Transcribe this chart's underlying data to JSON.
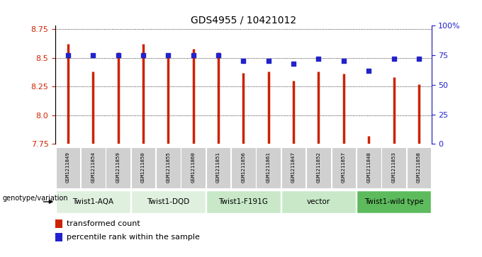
{
  "title": "GDS4955 / 10421012",
  "samples": [
    "GSM1211849",
    "GSM1211854",
    "GSM1211859",
    "GSM1211850",
    "GSM1211855",
    "GSM1211860",
    "GSM1211851",
    "GSM1211856",
    "GSM1211861",
    "GSM1211847",
    "GSM1211852",
    "GSM1211857",
    "GSM1211848",
    "GSM1211853",
    "GSM1211858"
  ],
  "bar_values": [
    8.62,
    8.38,
    8.55,
    8.62,
    8.54,
    8.58,
    8.55,
    8.37,
    8.38,
    8.3,
    8.38,
    8.36,
    7.82,
    8.33,
    8.27
  ],
  "percentile_values": [
    75,
    75,
    75,
    75,
    75,
    75,
    75,
    70,
    70,
    68,
    72,
    70,
    62,
    72,
    72
  ],
  "groups": [
    {
      "label": "Twist1-AQA",
      "start": 0,
      "end": 3
    },
    {
      "label": "Twist1-DQD",
      "start": 3,
      "end": 6
    },
    {
      "label": "Twist1-F191G",
      "start": 6,
      "end": 9
    },
    {
      "label": "vector",
      "start": 9,
      "end": 12
    },
    {
      "label": "Twist1-wild type",
      "start": 12,
      "end": 15
    }
  ],
  "group_colors": [
    "#dff0df",
    "#dff0df",
    "#c8e8c8",
    "#c8e8c8",
    "#5dbb5d"
  ],
  "ylim_left": [
    7.75,
    8.78
  ],
  "ylim_right": [
    0,
    100
  ],
  "yticks_left": [
    7.75,
    8.0,
    8.25,
    8.5,
    8.75
  ],
  "yticks_right": [
    0,
    25,
    50,
    75,
    100
  ],
  "ytick_labels_right": [
    "0",
    "25",
    "50",
    "75",
    "100%"
  ],
  "bar_color": "#cc2200",
  "dot_color": "#2222cc",
  "grid_color": "#000000",
  "sample_box_color": "#d0d0d0",
  "legend_red": "transformed count",
  "legend_blue": "percentile rank within the sample",
  "genotype_label": "genotype/variation"
}
